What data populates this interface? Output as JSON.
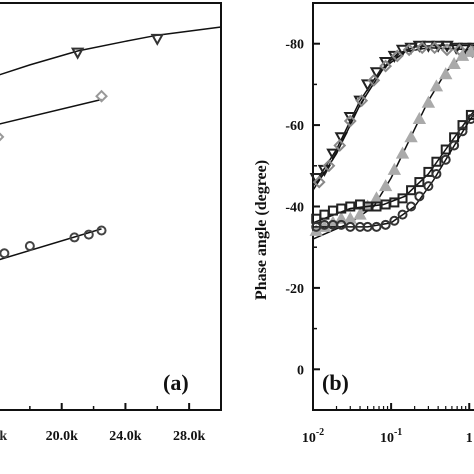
{
  "chart_data": [
    {
      "type": "line",
      "panel_label": "(a)",
      "xlabel": "",
      "ylabel": "",
      "xlim": [
        16000,
        30000
      ],
      "ylim": [
        0,
        1
      ],
      "x_ticks": [
        20000,
        24000,
        28000
      ],
      "x_tick_labels": [
        "20.0k",
        "24.0k",
        "28.0k"
      ],
      "grid": false,
      "series": [
        {
          "marker": "triangle-down",
          "color": "#333333",
          "points": [
            [
              21000,
              0.878
            ],
            [
              26000,
              0.912
            ]
          ],
          "fit": [
            [
              15800,
              0.82
            ],
            [
              18000,
              0.848
            ],
            [
              21000,
              0.882
            ],
            [
              24000,
              0.906
            ],
            [
              26000,
              0.921
            ],
            [
              30000,
              0.941
            ]
          ]
        },
        {
          "marker": "diamond",
          "color": "#999999",
          "points": [
            [
              16000,
              0.671
            ],
            [
              22500,
              0.771
            ]
          ],
          "fit": [
            [
              15800,
              0.7
            ],
            [
              22500,
              0.763
            ]
          ]
        },
        {
          "marker": "circle",
          "color": "#444444",
          "points": [
            [
              16400,
              0.385
            ],
            [
              18000,
              0.403
            ],
            [
              20800,
              0.424
            ],
            [
              21700,
              0.431
            ],
            [
              22500,
              0.441
            ]
          ],
          "fit": [
            [
              15800,
              0.366
            ],
            [
              22500,
              0.445
            ]
          ]
        }
      ]
    },
    {
      "type": "line",
      "panel_label": "(b)",
      "xlabel": "",
      "ylabel": "Phase angle (degree)",
      "xscale": "log",
      "xlim": [
        0.01,
        1.5
      ],
      "ylim": [
        -90,
        10
      ],
      "x_ticks": [
        0.01,
        0.1,
        1
      ],
      "x_tick_labels": [
        "10",
        "10",
        "1"
      ],
      "x_tick_exponents": [
        "-2",
        "-1",
        ""
      ],
      "y_ticks": [
        -80,
        -60,
        -40,
        -20,
        0
      ],
      "y_tick_labels": [
        "-80",
        "-60",
        "-40",
        "-20",
        "0"
      ],
      "grid": false,
      "series": [
        {
          "marker": "triangle-down",
          "color": "#222222",
          "points": [
            [
              0.011,
              -47
            ],
            [
              0.014,
              -49
            ],
            [
              0.018,
              -53
            ],
            [
              0.023,
              -57
            ],
            [
              0.03,
              -62
            ],
            [
              0.04,
              -66
            ],
            [
              0.05,
              -70
            ],
            [
              0.065,
              -73
            ],
            [
              0.085,
              -75.5
            ],
            [
              0.11,
              -77
            ],
            [
              0.14,
              -78.5
            ],
            [
              0.18,
              -79
            ],
            [
              0.23,
              -79.5
            ],
            [
              0.3,
              -79.5
            ],
            [
              0.4,
              -79.5
            ],
            [
              0.52,
              -79.5
            ],
            [
              0.68,
              -79
            ],
            [
              0.88,
              -79
            ],
            [
              1.15,
              -79
            ]
          ],
          "fit": [
            [
              0.01,
              -45
            ],
            [
              0.02,
              -54
            ],
            [
              0.04,
              -66
            ],
            [
              0.07,
              -73
            ],
            [
              0.12,
              -77.5
            ],
            [
              0.2,
              -79.2
            ],
            [
              0.4,
              -79.6
            ],
            [
              1.5,
              -79.5
            ]
          ]
        },
        {
          "marker": "diamond",
          "color": "#888888",
          "points": [
            [
              0.012,
              -46
            ],
            [
              0.016,
              -50
            ],
            [
              0.022,
              -55
            ],
            [
              0.03,
              -61
            ],
            [
              0.042,
              -66
            ],
            [
              0.06,
              -71
            ],
            [
              0.085,
              -74.5
            ],
            [
              0.12,
              -77
            ],
            [
              0.17,
              -78.5
            ],
            [
              0.25,
              -79
            ],
            [
              0.36,
              -79
            ],
            [
              0.52,
              -78.5
            ],
            [
              0.75,
              -78.5
            ],
            [
              1.1,
              -78
            ]
          ],
          "fit": [
            [
              0.01,
              -44
            ],
            [
              0.02,
              -53
            ],
            [
              0.04,
              -65
            ],
            [
              0.08,
              -74
            ],
            [
              0.15,
              -78
            ],
            [
              0.3,
              -79
            ],
            [
              0.7,
              -78.7
            ],
            [
              1.5,
              -78.2
            ]
          ]
        },
        {
          "marker": "triangle-up",
          "color": "#aaaaaa",
          "points": [
            [
              0.011,
              -34
            ],
            [
              0.014,
              -35
            ],
            [
              0.018,
              -36
            ],
            [
              0.023,
              -37
            ],
            [
              0.03,
              -37
            ],
            [
              0.04,
              -38
            ],
            [
              0.05,
              -40
            ],
            [
              0.065,
              -42
            ],
            [
              0.085,
              -45
            ],
            [
              0.11,
              -49
            ],
            [
              0.14,
              -53
            ],
            [
              0.18,
              -57
            ],
            [
              0.23,
              -61.5
            ],
            [
              0.3,
              -65.5
            ],
            [
              0.38,
              -69.5
            ],
            [
              0.5,
              -72.5
            ],
            [
              0.64,
              -75
            ],
            [
              0.82,
              -77
            ],
            [
              1.05,
              -78
            ]
          ],
          "fit": [
            [
              0.01,
              -32
            ],
            [
              0.03,
              -36
            ],
            [
              0.06,
              -40
            ],
            [
              0.1,
              -47
            ],
            [
              0.2,
              -59
            ],
            [
              0.3,
              -66
            ],
            [
              0.5,
              -73
            ],
            [
              0.8,
              -77
            ],
            [
              1.5,
              -79
            ]
          ]
        },
        {
          "marker": "square",
          "color": "#222222",
          "points": [
            [
              0.011,
              -37
            ],
            [
              0.014,
              -38
            ],
            [
              0.018,
              -39
            ],
            [
              0.023,
              -39.5
            ],
            [
              0.03,
              -40
            ],
            [
              0.04,
              -40.5
            ],
            [
              0.05,
              -40
            ],
            [
              0.065,
              -40
            ],
            [
              0.085,
              -40.5
            ],
            [
              0.11,
              -41
            ],
            [
              0.14,
              -42
            ],
            [
              0.18,
              -44
            ],
            [
              0.23,
              -46
            ],
            [
              0.3,
              -48.5
            ],
            [
              0.38,
              -51
            ],
            [
              0.5,
              -54
            ],
            [
              0.64,
              -57
            ],
            [
              0.82,
              -60
            ],
            [
              1.05,
              -62.5
            ]
          ],
          "fit": [
            [
              0.01,
              -36
            ],
            [
              0.03,
              -39.5
            ],
            [
              0.08,
              -40.5
            ],
            [
              0.15,
              -42.5
            ],
            [
              0.3,
              -48
            ],
            [
              0.5,
              -54
            ],
            [
              1.0,
              -62
            ],
            [
              1.5,
              -66
            ]
          ]
        },
        {
          "marker": "circle",
          "color": "#333333",
          "points": [
            [
              0.011,
              -35
            ],
            [
              0.014,
              -35.5
            ],
            [
              0.018,
              -35.5
            ],
            [
              0.023,
              -35.5
            ],
            [
              0.03,
              -35
            ],
            [
              0.04,
              -35
            ],
            [
              0.05,
              -35
            ],
            [
              0.065,
              -35
            ],
            [
              0.085,
              -35.5
            ],
            [
              0.11,
              -36.5
            ],
            [
              0.14,
              -38
            ],
            [
              0.18,
              -40
            ],
            [
              0.23,
              -42.5
            ],
            [
              0.3,
              -45
            ],
            [
              0.38,
              -48
            ],
            [
              0.5,
              -51.5
            ],
            [
              0.64,
              -55
            ],
            [
              0.82,
              -58.5
            ],
            [
              1.05,
              -61.5
            ]
          ],
          "fit": [
            [
              0.01,
              -35
            ],
            [
              0.05,
              -35
            ],
            [
              0.1,
              -36
            ],
            [
              0.2,
              -40
            ],
            [
              0.35,
              -46.5
            ],
            [
              0.6,
              -54
            ],
            [
              1.0,
              -61
            ],
            [
              1.5,
              -66
            ]
          ]
        }
      ]
    }
  ]
}
